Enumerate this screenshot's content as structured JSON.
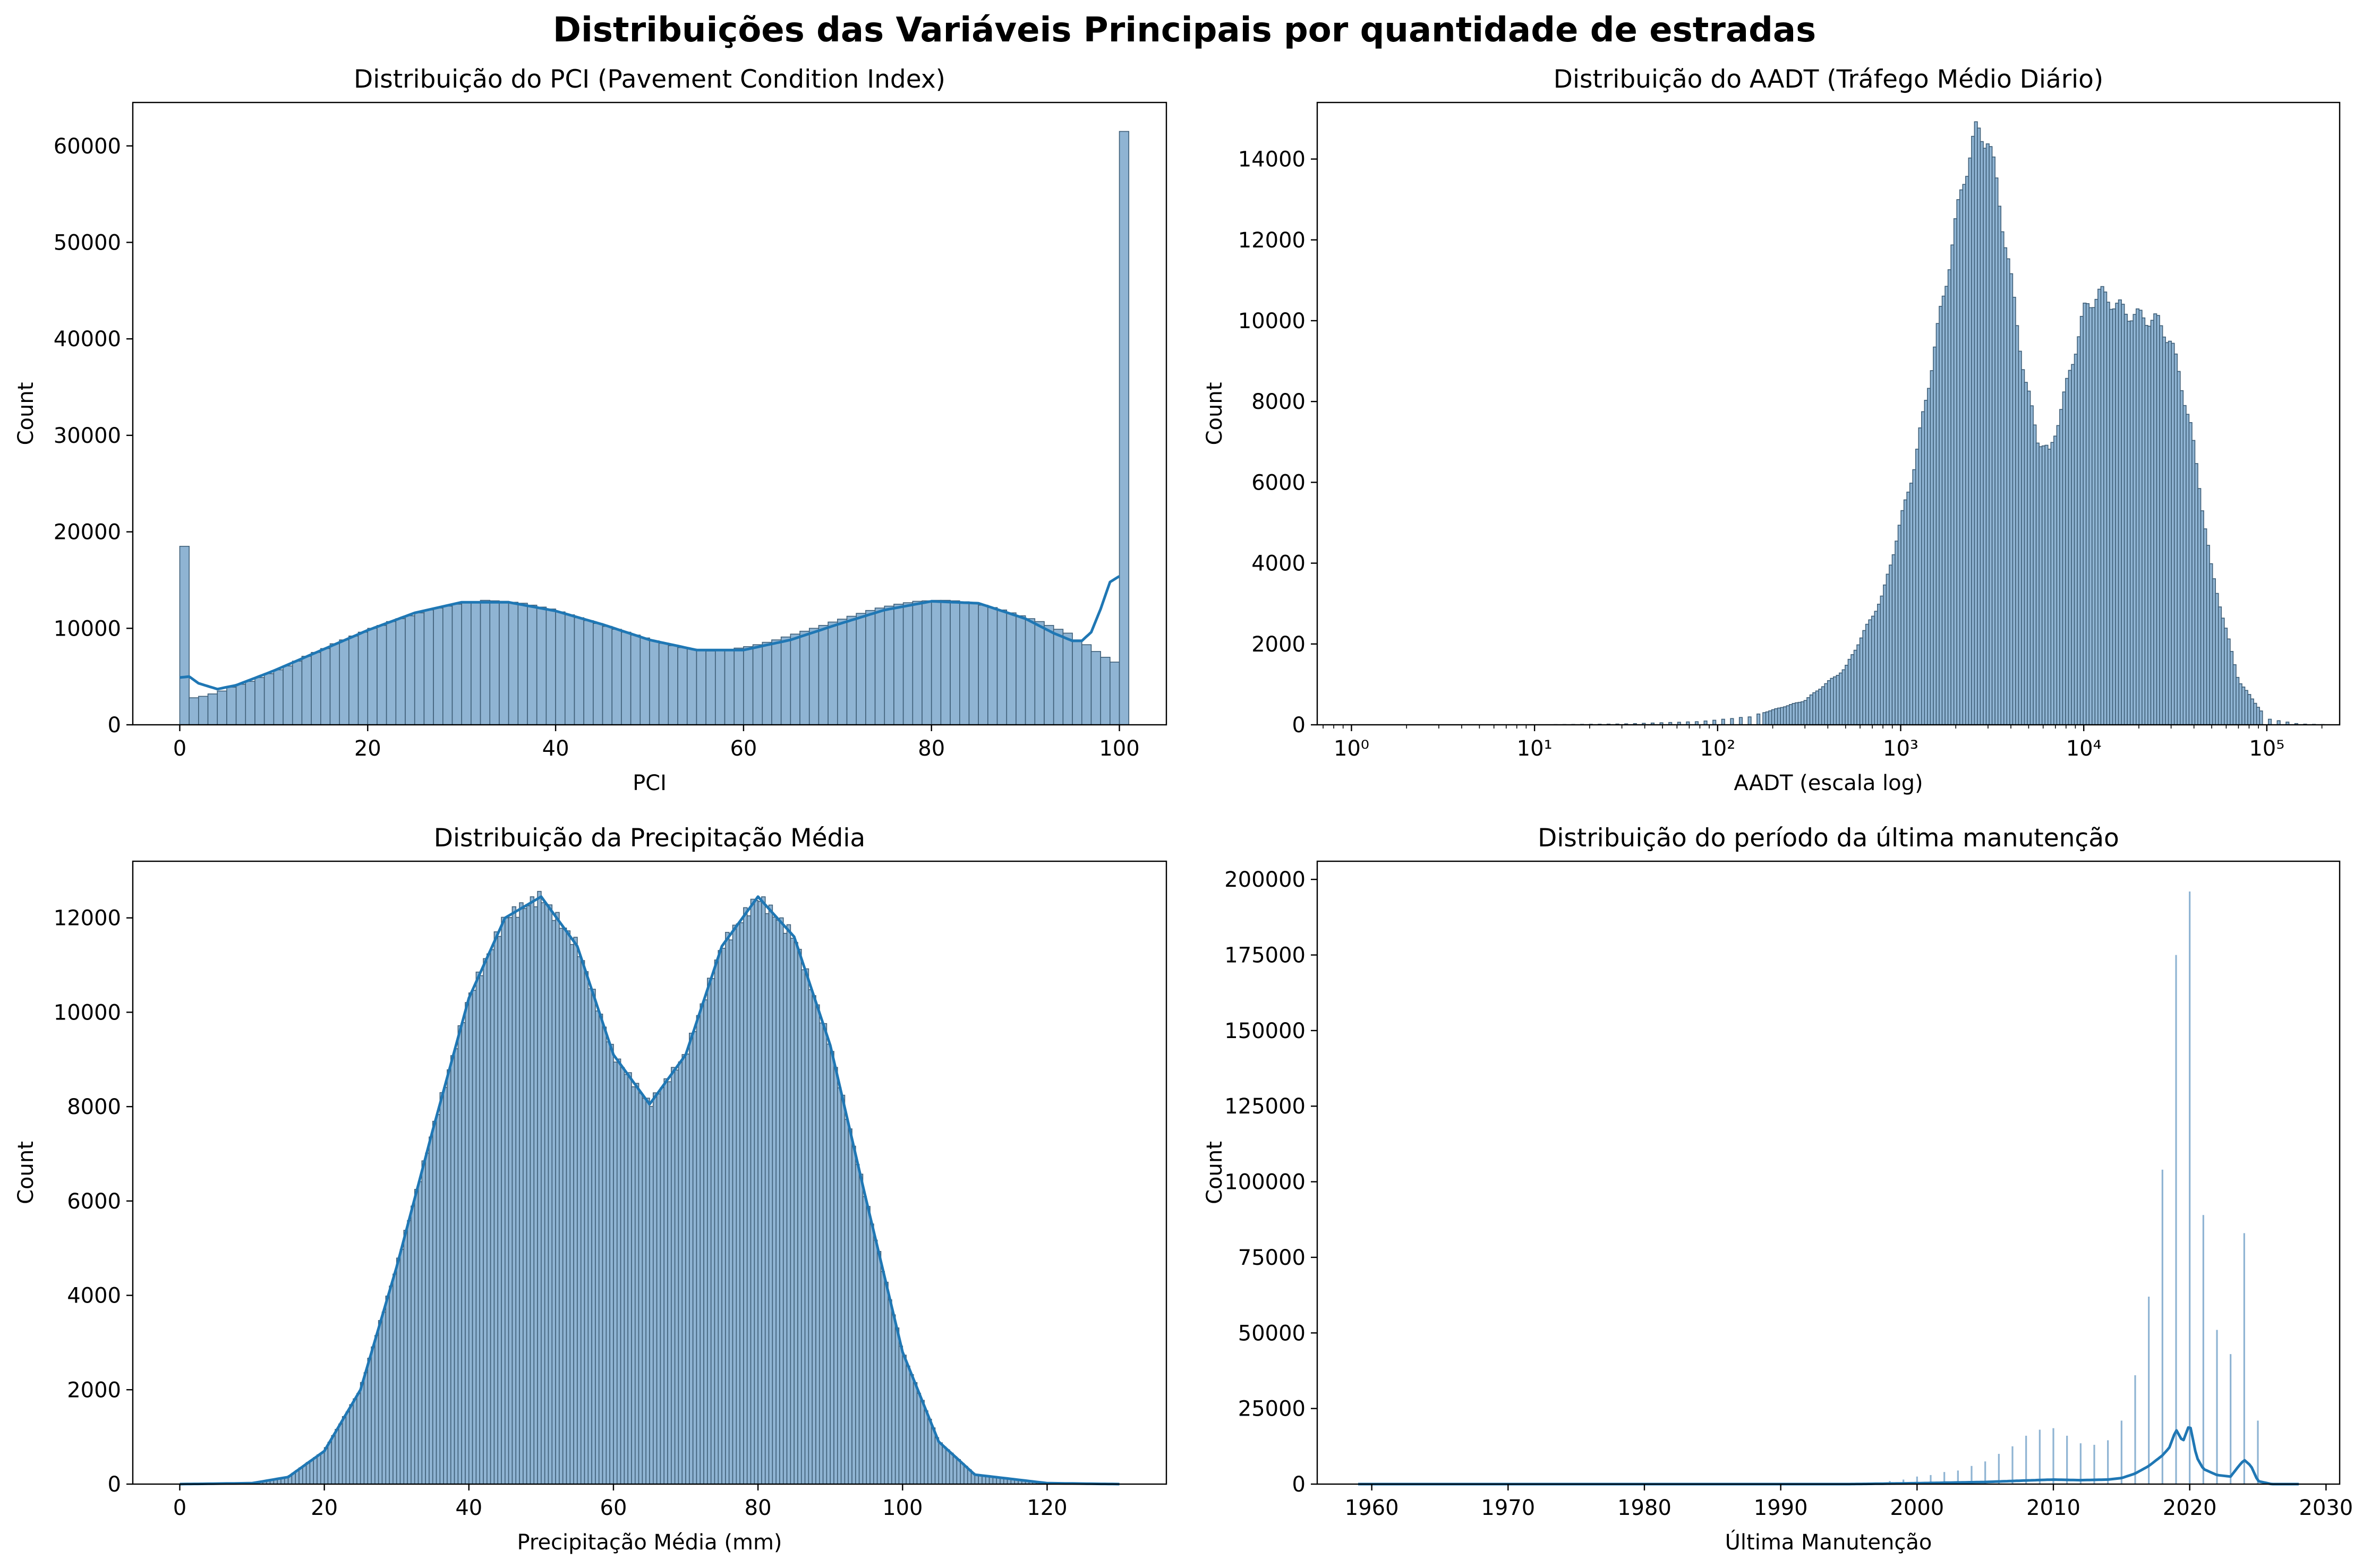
{
  "figure": {
    "suptitle": "Distribuições das Variáveis Principais por quantidade de estradas"
  },
  "colors": {
    "bar_fill": "#8fb4d3",
    "bar_edge": "#3f5f78",
    "kde_line": "#1f77b4"
  },
  "chart_data": [
    {
      "type": "histogram",
      "title": "Distribuição do PCI (Pavement Condition Index)",
      "xlabel": "PCI",
      "ylabel": "Count",
      "xlim": [
        -5,
        105
      ],
      "ylim": [
        0,
        64500
      ],
      "xscale": "linear",
      "xticks": [
        0,
        20,
        40,
        60,
        80,
        100
      ],
      "yticks": [
        0,
        10000,
        20000,
        30000,
        40000,
        50000,
        60000
      ],
      "kde": true,
      "bins": {
        "start": 0,
        "width": 1
      },
      "counts": [
        18500,
        2800,
        2950,
        3200,
        3500,
        3900,
        4200,
        4500,
        4900,
        5300,
        5700,
        6100,
        6600,
        7100,
        7500,
        7900,
        8400,
        8800,
        9200,
        9600,
        10000,
        10300,
        10700,
        11000,
        11300,
        11600,
        11900,
        12100,
        12300,
        12500,
        12650,
        12750,
        12900,
        12850,
        12800,
        12700,
        12600,
        12400,
        12200,
        12000,
        11700,
        11400,
        11100,
        10800,
        10500,
        10200,
        9900,
        9600,
        9300,
        9000,
        8700,
        8450,
        8200,
        8000,
        7850,
        7700,
        7650,
        7700,
        7800,
        7950,
        8100,
        8300,
        8550,
        8800,
        9100,
        9400,
        9700,
        10000,
        10300,
        10650,
        10950,
        11250,
        11550,
        11850,
        12100,
        12300,
        12500,
        12650,
        12800,
        12850,
        12900,
        12900,
        12850,
        12750,
        12600,
        12400,
        12150,
        11900,
        11600,
        11300,
        11000,
        10700,
        10300,
        9900,
        9500,
        8800,
        8300,
        7600,
        7000,
        6500,
        61500
      ],
      "kde_curve": {
        "x": [
          0,
          1,
          2,
          4,
          6,
          10,
          15,
          20,
          25,
          30,
          35,
          40,
          45,
          50,
          55,
          60,
          65,
          70,
          75,
          80,
          85,
          90,
          93,
          95,
          96,
          97,
          98,
          99,
          100
        ],
        "y": [
          4900,
          5000,
          4300,
          3700,
          4100,
          5600,
          7700,
          9800,
          11600,
          12700,
          12700,
          11800,
          10400,
          8800,
          7750,
          7750,
          8800,
          10400,
          11900,
          12800,
          12600,
          11000,
          9500,
          8700,
          8700,
          9600,
          12000,
          14800,
          15400
        ]
      }
    },
    {
      "type": "histogram",
      "title": "Distribuição do AADT (Tráfego Médio Diário)",
      "xlabel": "AADT (escala log)",
      "ylabel": "Count",
      "xlim": [
        0.65,
        250000
      ],
      "ylim": [
        0,
        15400
      ],
      "xscale": "log",
      "xticks": [
        1,
        10,
        100,
        1000,
        10000,
        100000
      ],
      "xtick_labels": [
        "10⁰",
        "10¹",
        "10²",
        "10³",
        "10⁴",
        "10⁵"
      ],
      "yticks": [
        0,
        2000,
        4000,
        6000,
        8000,
        10000,
        12000,
        14000
      ],
      "kde": false,
      "density_profile": {
        "x": [
          0.8,
          10,
          30,
          80,
          150,
          300,
          500,
          800,
          1200,
          1700,
          2200,
          2600,
          3000,
          3400,
          4000,
          4800,
          5600,
          6500,
          8000,
          10000,
          12000,
          14000,
          17000,
          20000,
          25000,
          30000,
          38000,
          50000,
          70000,
          100000,
          150000,
          230000
        ],
        "y": [
          0,
          0,
          20,
          80,
          200,
          600,
          1400,
          3200,
          6500,
          10500,
          13500,
          14700,
          14500,
          13200,
          11000,
          8500,
          7100,
          6700,
          8300,
          10200,
          10700,
          10500,
          10200,
          10100,
          10000,
          9500,
          7500,
          3800,
          1100,
          150,
          20,
          0
        ]
      }
    },
    {
      "type": "histogram",
      "title": "Distribuição da Precipitação Média",
      "xlabel": "Precipitação Média (mm)",
      "ylabel": "Count",
      "xlim": [
        -6.5,
        136.5
      ],
      "ylim": [
        0,
        13200
      ],
      "xscale": "linear",
      "xticks": [
        0,
        20,
        40,
        60,
        80,
        100,
        120
      ],
      "yticks": [
        0,
        2000,
        4000,
        6000,
        8000,
        10000,
        12000
      ],
      "kde": true,
      "density_profile": {
        "x": [
          0,
          10,
          15,
          20,
          25,
          30,
          35,
          40,
          45,
          50,
          55,
          60,
          65,
          70,
          75,
          80,
          85,
          90,
          95,
          100,
          105,
          110,
          120,
          130
        ],
        "y": [
          0,
          20,
          150,
          700,
          2000,
          4600,
          7500,
          10300,
          12000,
          12450,
          11400,
          9100,
          8050,
          9100,
          11400,
          12450,
          11600,
          9300,
          6000,
          2800,
          900,
          200,
          20,
          0
        ]
      }
    },
    {
      "type": "histogram",
      "title": "Distribuição do período da última manutenção",
      "xlabel": "Última Manutenção",
      "ylabel": "Count",
      "xlim": [
        1956,
        2031
      ],
      "ylim": [
        0,
        206000
      ],
      "xscale": "linear",
      "xticks": [
        1960,
        1970,
        1980,
        1990,
        2000,
        2010,
        2020,
        2030
      ],
      "yticks": [
        0,
        25000,
        50000,
        75000,
        100000,
        125000,
        150000,
        175000,
        200000
      ],
      "kde": true,
      "year_spikes": {
        "years": [
          1998,
          1999,
          2000,
          2001,
          2002,
          2003,
          2004,
          2005,
          2006,
          2007,
          2008,
          2009,
          2010,
          2011,
          2012,
          2013,
          2014,
          2015,
          2016,
          2017,
          2018,
          2019,
          2020,
          2021,
          2022,
          2023,
          2024,
          2025
        ],
        "values": [
          1000,
          1500,
          2500,
          3000,
          4000,
          4500,
          6000,
          7500,
          10000,
          12500,
          16000,
          18000,
          18500,
          16000,
          13500,
          13000,
          14500,
          21000,
          36000,
          62000,
          104000,
          175000,
          196000,
          89000,
          51000,
          43000,
          83000,
          21000
        ]
      },
      "kde_curve": {
        "x": [
          1959,
          1995,
          2000,
          2005,
          2008,
          2010,
          2012,
          2014,
          2015,
          2016,
          2017,
          2018,
          2018.5,
          2019,
          2019.5,
          2020,
          2020.5,
          2021,
          2022,
          2023,
          2023.6,
          2024,
          2024.5,
          2025,
          2026,
          2028
        ],
        "y": [
          0,
          0,
          300,
          700,
          1200,
          1500,
          1300,
          1500,
          2000,
          3500,
          6000,
          9500,
          12000,
          18000,
          14000,
          20000,
          9000,
          5000,
          3000,
          2500,
          6000,
          8000,
          6000,
          1000,
          0,
          0
        ]
      }
    }
  ]
}
